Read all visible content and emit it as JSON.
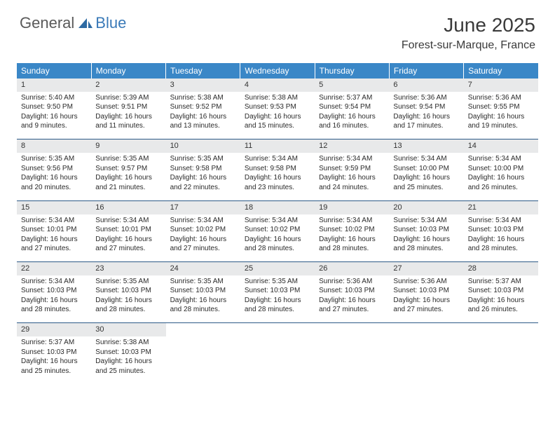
{
  "brand": {
    "general": "General",
    "blue": "Blue",
    "icon_color": "#2d6aa3"
  },
  "header": {
    "title": "June 2025",
    "location": "Forest-sur-Marque, France"
  },
  "colors": {
    "header_bg": "#3a87c7",
    "header_text": "#ffffff",
    "daynum_bg": "#e8e9ea",
    "border": "#2d5a87",
    "body_text": "#2a2a2a"
  },
  "day_headers": [
    "Sunday",
    "Monday",
    "Tuesday",
    "Wednesday",
    "Thursday",
    "Friday",
    "Saturday"
  ],
  "weeks": [
    [
      {
        "n": "1",
        "sr": "5:40 AM",
        "ss": "9:50 PM",
        "dl": "16 hours and 9 minutes."
      },
      {
        "n": "2",
        "sr": "5:39 AM",
        "ss": "9:51 PM",
        "dl": "16 hours and 11 minutes."
      },
      {
        "n": "3",
        "sr": "5:38 AM",
        "ss": "9:52 PM",
        "dl": "16 hours and 13 minutes."
      },
      {
        "n": "4",
        "sr": "5:38 AM",
        "ss": "9:53 PM",
        "dl": "16 hours and 15 minutes."
      },
      {
        "n": "5",
        "sr": "5:37 AM",
        "ss": "9:54 PM",
        "dl": "16 hours and 16 minutes."
      },
      {
        "n": "6",
        "sr": "5:36 AM",
        "ss": "9:54 PM",
        "dl": "16 hours and 17 minutes."
      },
      {
        "n": "7",
        "sr": "5:36 AM",
        "ss": "9:55 PM",
        "dl": "16 hours and 19 minutes."
      }
    ],
    [
      {
        "n": "8",
        "sr": "5:35 AM",
        "ss": "9:56 PM",
        "dl": "16 hours and 20 minutes."
      },
      {
        "n": "9",
        "sr": "5:35 AM",
        "ss": "9:57 PM",
        "dl": "16 hours and 21 minutes."
      },
      {
        "n": "10",
        "sr": "5:35 AM",
        "ss": "9:58 PM",
        "dl": "16 hours and 22 minutes."
      },
      {
        "n": "11",
        "sr": "5:34 AM",
        "ss": "9:58 PM",
        "dl": "16 hours and 23 minutes."
      },
      {
        "n": "12",
        "sr": "5:34 AM",
        "ss": "9:59 PM",
        "dl": "16 hours and 24 minutes."
      },
      {
        "n": "13",
        "sr": "5:34 AM",
        "ss": "10:00 PM",
        "dl": "16 hours and 25 minutes."
      },
      {
        "n": "14",
        "sr": "5:34 AM",
        "ss": "10:00 PM",
        "dl": "16 hours and 26 minutes."
      }
    ],
    [
      {
        "n": "15",
        "sr": "5:34 AM",
        "ss": "10:01 PM",
        "dl": "16 hours and 27 minutes."
      },
      {
        "n": "16",
        "sr": "5:34 AM",
        "ss": "10:01 PM",
        "dl": "16 hours and 27 minutes."
      },
      {
        "n": "17",
        "sr": "5:34 AM",
        "ss": "10:02 PM",
        "dl": "16 hours and 27 minutes."
      },
      {
        "n": "18",
        "sr": "5:34 AM",
        "ss": "10:02 PM",
        "dl": "16 hours and 28 minutes."
      },
      {
        "n": "19",
        "sr": "5:34 AM",
        "ss": "10:02 PM",
        "dl": "16 hours and 28 minutes."
      },
      {
        "n": "20",
        "sr": "5:34 AM",
        "ss": "10:03 PM",
        "dl": "16 hours and 28 minutes."
      },
      {
        "n": "21",
        "sr": "5:34 AM",
        "ss": "10:03 PM",
        "dl": "16 hours and 28 minutes."
      }
    ],
    [
      {
        "n": "22",
        "sr": "5:34 AM",
        "ss": "10:03 PM",
        "dl": "16 hours and 28 minutes."
      },
      {
        "n": "23",
        "sr": "5:35 AM",
        "ss": "10:03 PM",
        "dl": "16 hours and 28 minutes."
      },
      {
        "n": "24",
        "sr": "5:35 AM",
        "ss": "10:03 PM",
        "dl": "16 hours and 28 minutes."
      },
      {
        "n": "25",
        "sr": "5:35 AM",
        "ss": "10:03 PM",
        "dl": "16 hours and 28 minutes."
      },
      {
        "n": "26",
        "sr": "5:36 AM",
        "ss": "10:03 PM",
        "dl": "16 hours and 27 minutes."
      },
      {
        "n": "27",
        "sr": "5:36 AM",
        "ss": "10:03 PM",
        "dl": "16 hours and 27 minutes."
      },
      {
        "n": "28",
        "sr": "5:37 AM",
        "ss": "10:03 PM",
        "dl": "16 hours and 26 minutes."
      }
    ],
    [
      {
        "n": "29",
        "sr": "5:37 AM",
        "ss": "10:03 PM",
        "dl": "16 hours and 25 minutes."
      },
      {
        "n": "30",
        "sr": "5:38 AM",
        "ss": "10:03 PM",
        "dl": "16 hours and 25 minutes."
      },
      null,
      null,
      null,
      null,
      null
    ]
  ],
  "labels": {
    "sunrise": "Sunrise:",
    "sunset": "Sunset:",
    "daylight": "Daylight:"
  }
}
